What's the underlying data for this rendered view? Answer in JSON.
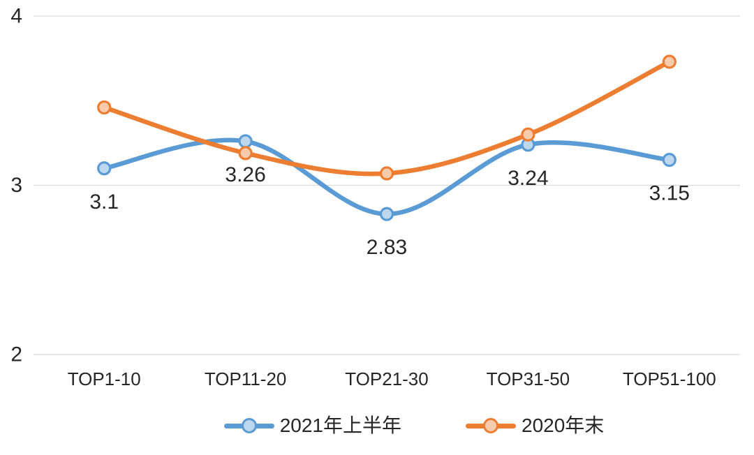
{
  "chart_data": {
    "type": "line",
    "line_style": "smooth",
    "title": "",
    "xlabel": "",
    "ylabel": "",
    "categories": [
      "TOP1-10",
      "TOP11-20",
      "TOP21-30",
      "TOP31-50",
      "TOP51-100"
    ],
    "series": [
      {
        "name": "2021年上半年",
        "color": "#5B9BD5",
        "marker_fill": "#BDD7EE",
        "values": [
          3.1,
          3.26,
          2.83,
          3.24,
          3.15
        ],
        "data_labels": [
          "3.1",
          "3.26",
          "2.83",
          "3.24",
          "3.15"
        ]
      },
      {
        "name": "2020年末",
        "color": "#ED7D31",
        "marker_fill": "#F8CBAD",
        "values": [
          3.46,
          3.19,
          3.07,
          3.3,
          3.73
        ],
        "data_labels": null
      }
    ],
    "ylim": [
      2,
      4
    ],
    "yticks": [
      "2",
      "3",
      "4"
    ],
    "grid": true,
    "gridline_color": "#D9D9D9",
    "text_color": "#262626",
    "legend_position": "bottom"
  }
}
